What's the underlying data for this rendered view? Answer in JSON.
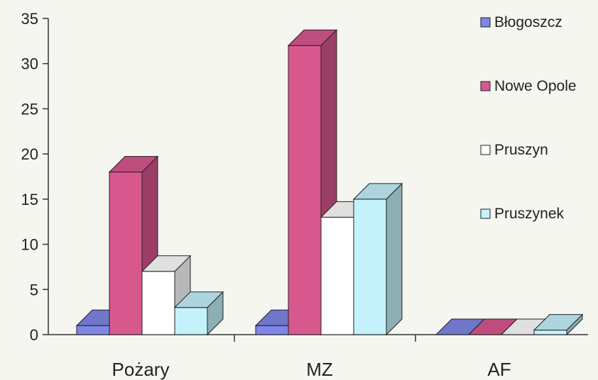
{
  "chart_data": {
    "type": "bar",
    "style": "3d-clustered-column",
    "categories": [
      "Pożary",
      "MZ",
      "AF"
    ],
    "series": [
      {
        "name": "Błogoszcz",
        "values": [
          1,
          1,
          0
        ],
        "color": "#7f86e6"
      },
      {
        "name": "Nowe Opole",
        "values": [
          18,
          32,
          0
        ],
        "color": "#d8588e"
      },
      {
        "name": "Pruszyn",
        "values": [
          7,
          13,
          0
        ],
        "color": "#ffffff"
      },
      {
        "name": "Pruszynek",
        "values": [
          3,
          15,
          0.5
        ],
        "color": "#c3f2fb"
      }
    ],
    "yticks": [
      0,
      5,
      10,
      15,
      20,
      25,
      30,
      35
    ],
    "ylim": [
      0,
      35
    ],
    "legend_position": "right",
    "gridlines": false
  }
}
